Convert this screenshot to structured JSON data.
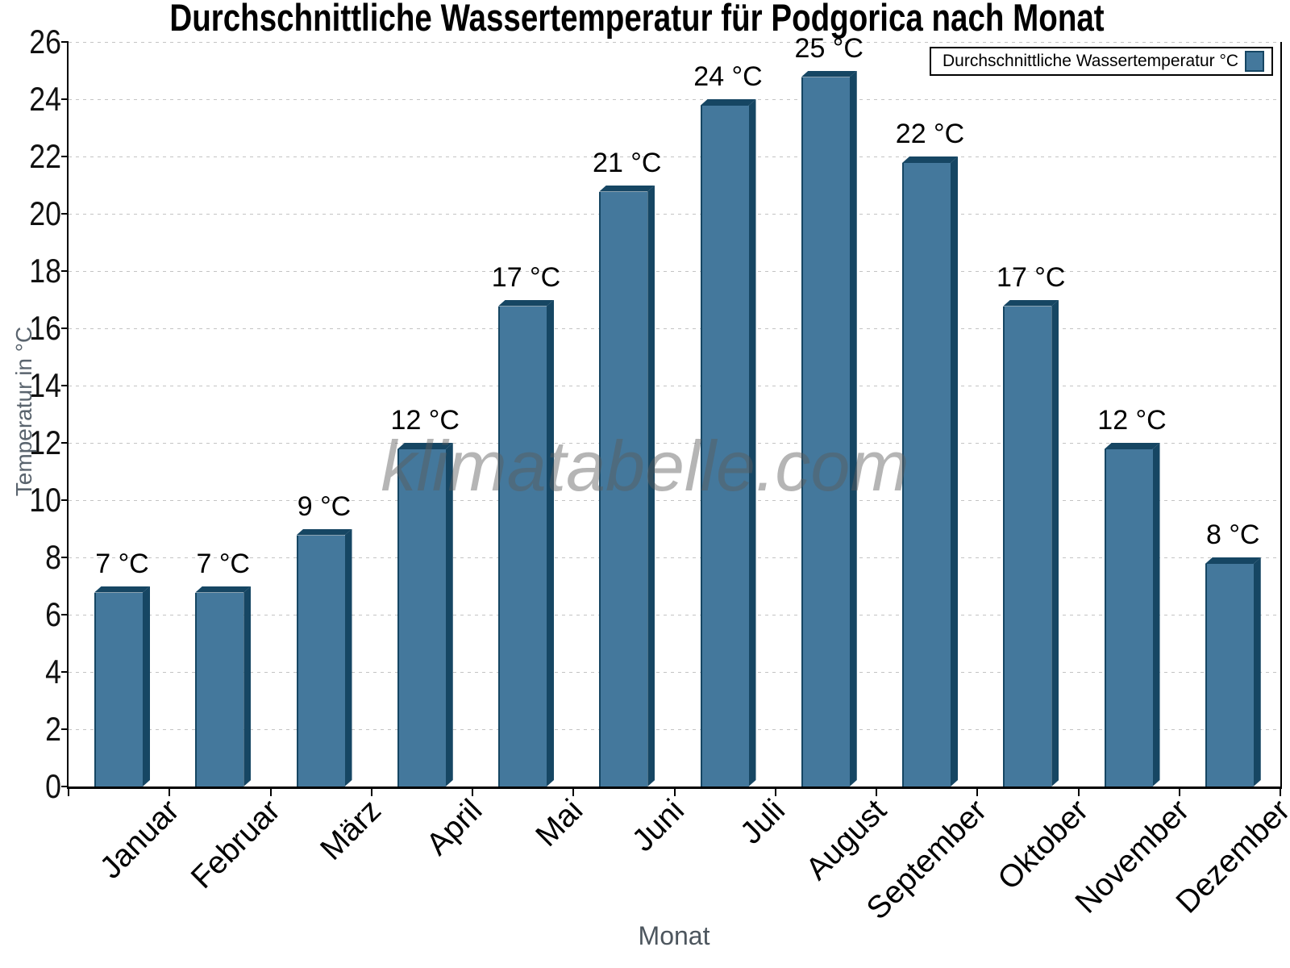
{
  "title": "Durchschnittliche Wassertemperatur für Podgorica nach Monat",
  "watermark": "klimatabelle.com",
  "legend": {
    "label": "Durchschnittliche Wassertemperatur °C",
    "position": "top-right"
  },
  "axes": {
    "x_label": "Monat",
    "y_label": "Temperatur in °C"
  },
  "chart_data": {
    "type": "bar",
    "title": "Durchschnittliche Wassertemperatur für Podgorica nach Monat",
    "categories": [
      "Januar",
      "Februar",
      "März",
      "April",
      "Mai",
      "Juni",
      "Juli",
      "August",
      "September",
      "Oktober",
      "November",
      "Dezember"
    ],
    "values": [
      7,
      7,
      9,
      12,
      17,
      21,
      24,
      25,
      22,
      17,
      12,
      8
    ],
    "bar_labels": [
      "7 °C",
      "7 °C",
      "9 °C",
      "12 °C",
      "17 °C",
      "21 °C",
      "24 °C",
      "25 °C",
      "22 °C",
      "17 °C",
      "12 °C",
      "8 °C"
    ],
    "xlabel": "Monat",
    "ylabel": "Temperatur in °C",
    "ylim": [
      0,
      26
    ],
    "ytick_step": 2,
    "grid": "horizontal-dashed",
    "legend_entries": [
      "Durchschnittliche Wassertemperatur °C"
    ],
    "legend_position": "top-right",
    "colors": {
      "bar_face": "#44789C",
      "bar_shade": "#164663",
      "grid_line": "#c4c4c4",
      "axis": "#000000",
      "axis_title": "#4d565e",
      "tick_label": "#111111",
      "watermark_gray": "#9a9a9a"
    }
  }
}
